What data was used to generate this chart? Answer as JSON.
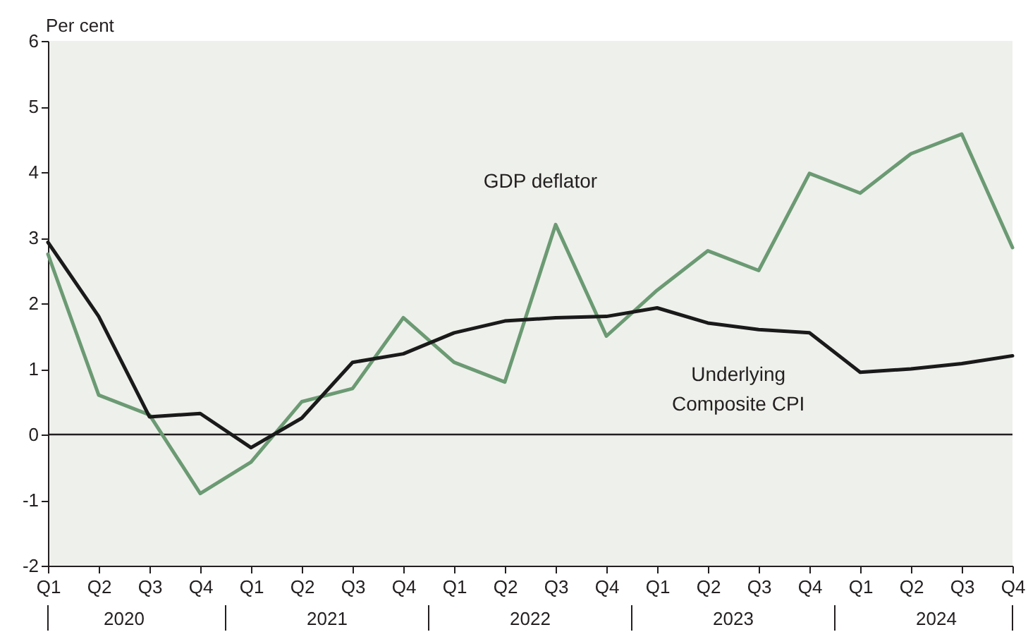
{
  "chart_data": {
    "type": "line",
    "ylabel": "Per cent",
    "categories": [
      "Q1",
      "Q2",
      "Q3",
      "Q4",
      "Q1",
      "Q2",
      "Q3",
      "Q4",
      "Q1",
      "Q2",
      "Q3",
      "Q4",
      "Q1",
      "Q2",
      "Q3",
      "Q4",
      "Q1",
      "Q2",
      "Q3",
      "Q4"
    ],
    "annotations": [
      "2020",
      "2021",
      "2022",
      "2023",
      "2024"
    ],
    "series": [
      {
        "name": "GDP deflator",
        "color": "#6b9a73",
        "values": [
          2.75,
          0.6,
          0.3,
          -0.9,
          -0.42,
          0.5,
          0.7,
          1.78,
          1.1,
          0.8,
          3.2,
          1.5,
          2.2,
          2.8,
          2.5,
          3.98,
          3.68,
          4.28,
          4.58,
          2.85
        ]
      },
      {
        "name": "Underlying Composite CPI",
        "color": "#1a1a1a",
        "values": [
          2.93,
          1.8,
          0.27,
          0.32,
          -0.2,
          0.25,
          1.1,
          1.23,
          1.55,
          1.73,
          1.78,
          1.8,
          1.93,
          1.7,
          1.6,
          1.55,
          0.95,
          1.0,
          1.08,
          1.2
        ]
      }
    ],
    "ylim": [
      -2,
      6
    ],
    "yticks": [
      -2,
      -1,
      0,
      1,
      2,
      3,
      4,
      5,
      6
    ],
    "ref_lines": [
      {
        "axis": "y",
        "value": 0,
        "color": "#231f20"
      }
    ],
    "grid": false,
    "legend": false,
    "marker": "none",
    "line_style": "solid"
  }
}
